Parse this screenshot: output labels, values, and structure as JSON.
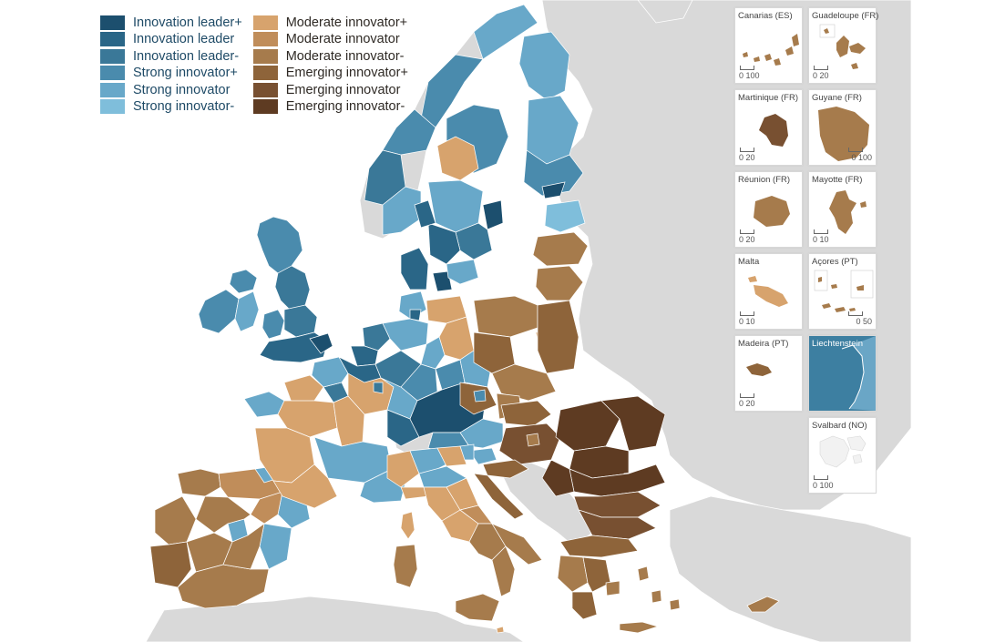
{
  "colors": {
    "innovation_leader_plus": "#1c4f6e",
    "innovation_leader": "#2a6687",
    "innovation_leader_minus": "#3a7898",
    "strong_innovator_plus": "#4a8bad",
    "strong_innovator": "#68a8c9",
    "strong_innovator_minus": "#7fbedb",
    "moderate_innovator_plus": "#d7a36d",
    "moderate_innovator": "#c08d5a",
    "moderate_innovator_minus": "#a67b4c",
    "emerging_innovator_plus": "#8e643a",
    "emerging_innovator": "#785031",
    "emerging_innovator_minus": "#5e3b22",
    "land_other": "#d9d9d9",
    "sea": "#ffffff"
  },
  "legend": {
    "left": [
      {
        "label": "Innovation leader+",
        "color": "#1c4f6e"
      },
      {
        "label": "Innovation leader",
        "color": "#2a6687"
      },
      {
        "label": "Innovation leader-",
        "color": "#3a7898"
      },
      {
        "label": "Strong innovator+",
        "color": "#4a8bad"
      },
      {
        "label": "Strong innovator",
        "color": "#68a8c9"
      },
      {
        "label": "Strong innovator-",
        "color": "#7fbedb"
      }
    ],
    "right": [
      {
        "label": "Moderate innovator+",
        "color": "#d7a36d"
      },
      {
        "label": "Moderate innovator",
        "color": "#c08d5a"
      },
      {
        "label": "Moderate innovator-",
        "color": "#a67b4c"
      },
      {
        "label": "Emerging innovator+",
        "color": "#8e643a"
      },
      {
        "label": "Emerging innovator",
        "color": "#785031"
      },
      {
        "label": "Emerging innovator-",
        "color": "#5e3b22"
      }
    ]
  },
  "insets": {
    "canarias": {
      "title": "Canarias (ES)",
      "scale": "0  100"
    },
    "guadeloupe": {
      "title": "Guadeloupe (FR)",
      "scale": "0  20"
    },
    "martinique": {
      "title": "Martinique (FR)",
      "scale": "0  20"
    },
    "guyane": {
      "title": "Guyane (FR)",
      "scale": "0  100"
    },
    "reunion": {
      "title": "Réunion (FR)",
      "scale": "0  20"
    },
    "mayotte": {
      "title": "Mayotte (FR)",
      "scale": "0  10"
    },
    "malta": {
      "title": "Malta",
      "scale": "0  10"
    },
    "acores": {
      "title": "Açores (PT)",
      "scale": "0  50"
    },
    "madeira": {
      "title": "Madeira (PT)",
      "scale": "0  20"
    },
    "liechtenstein": {
      "title": "Liechtenstein",
      "scale": ""
    },
    "svalbard": {
      "title": "Svalbard (NO)",
      "scale": "0 100"
    }
  }
}
